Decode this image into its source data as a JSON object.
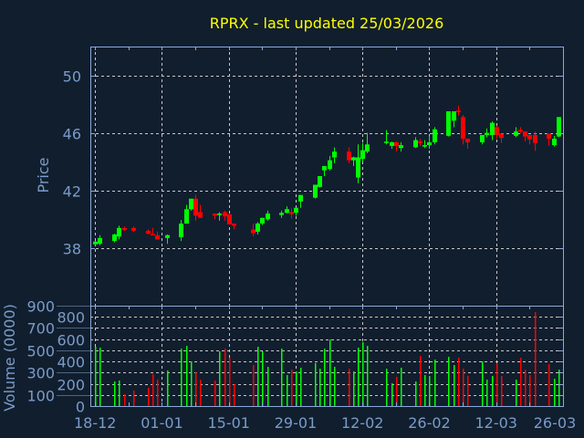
{
  "chart_data": {
    "type": "candlestick",
    "title": "RPRX - last updated 25/03/2026",
    "colors": {
      "background": "#111e2e",
      "up": "#00ff00",
      "down": "#ff0000",
      "axis": "#8aaad8",
      "text": "#7a9cc8",
      "grid": "#c8c8c8",
      "title": "#ffff00"
    },
    "x_ticks": [
      {
        "date": "2025-12-18",
        "label": "18-12"
      },
      {
        "date": "2026-01-01",
        "label": "01-01"
      },
      {
        "date": "2026-01-15",
        "label": "15-01"
      },
      {
        "date": "2026-01-29",
        "label": "29-01"
      },
      {
        "date": "2026-02-12",
        "label": "12-02"
      },
      {
        "date": "2026-02-26",
        "label": "26-02"
      },
      {
        "date": "2026-03-12",
        "label": "12-03"
      },
      {
        "date": "2026-03-26",
        "label": "26-03"
      }
    ],
    "xlim": [
      "2025-12-17",
      "2026-03-26"
    ],
    "grid": true,
    "price_panel": {
      "ylabel": "Price",
      "ylim": [
        34,
        52
      ],
      "ticks": [
        38,
        42,
        46,
        50
      ]
    },
    "volume_panel": {
      "ylabel": "Volume (0000)",
      "ylim": [
        0,
        900
      ],
      "ticks": [
        0,
        100,
        200,
        300,
        400,
        500,
        600,
        700,
        800,
        900
      ]
    },
    "columns": [
      "date",
      "open",
      "high",
      "low",
      "close",
      "volume"
    ],
    "candles": [
      [
        "2025-12-18",
        38.26,
        38.5,
        38.2,
        38.45,
        532
      ],
      [
        "2025-12-19",
        38.3,
        38.9,
        38.2,
        38.7,
        524
      ],
      [
        "2025-12-22",
        38.5,
        39.0,
        38.4,
        38.95,
        221
      ],
      [
        "2025-12-23",
        38.8,
        39.55,
        38.6,
        39.4,
        229
      ],
      [
        "2025-12-24",
        39.4,
        39.5,
        39.2,
        39.25,
        106
      ],
      [
        "2025-12-26",
        39.4,
        39.5,
        39.1,
        39.2,
        139
      ],
      [
        "2025-12-29",
        39.2,
        39.3,
        38.95,
        39.0,
        164
      ],
      [
        "2025-12-30",
        38.98,
        39.4,
        38.9,
        38.9,
        286
      ],
      [
        "2025-12-31",
        38.9,
        39.15,
        38.6,
        38.6,
        237
      ],
      [
        "2026-01-02",
        38.7,
        38.95,
        38.3,
        38.9,
        319
      ],
      [
        "2026-01-05",
        38.75,
        39.95,
        38.5,
        39.7,
        515
      ],
      [
        "2026-01-06",
        39.7,
        41.0,
        39.7,
        40.7,
        540
      ],
      [
        "2026-01-07",
        40.7,
        41.43,
        40.6,
        41.43,
        401
      ],
      [
        "2026-01-08",
        41.43,
        41.7,
        39.9,
        40.25,
        303
      ],
      [
        "2026-01-09",
        40.5,
        41.0,
        40.1,
        40.1,
        237
      ],
      [
        "2026-01-12",
        40.4,
        40.4,
        40.0,
        40.25,
        229
      ],
      [
        "2026-01-13",
        40.3,
        40.5,
        39.9,
        40.4,
        491
      ],
      [
        "2026-01-14",
        40.5,
        40.6,
        39.9,
        40.2,
        515
      ],
      [
        "2026-01-15",
        40.35,
        40.35,
        39.65,
        39.65,
        434
      ],
      [
        "2026-01-16",
        39.7,
        39.7,
        39.3,
        39.55,
        196
      ],
      [
        "2026-01-20",
        39.29,
        39.71,
        38.83,
        39.04,
        368
      ],
      [
        "2026-01-21",
        39.14,
        39.8,
        38.95,
        39.71,
        532
      ],
      [
        "2026-01-22",
        39.71,
        40.1,
        39.6,
        40.1,
        491
      ],
      [
        "2026-01-23",
        40.0,
        40.6,
        39.9,
        40.4,
        352
      ],
      [
        "2026-01-26",
        40.3,
        40.6,
        40.1,
        40.45,
        515
      ],
      [
        "2026-01-27",
        40.45,
        40.9,
        40.4,
        40.7,
        278
      ],
      [
        "2026-01-28",
        40.5,
        40.75,
        40.05,
        40.35,
        327
      ],
      [
        "2026-01-29",
        40.45,
        40.8,
        40.25,
        40.8,
        311
      ],
      [
        "2026-01-30",
        41.24,
        41.69,
        40.8,
        41.69,
        344
      ],
      [
        "2026-02-02",
        41.5,
        42.4,
        41.45,
        42.4,
        385
      ],
      [
        "2026-02-03",
        42.25,
        43.0,
        42.2,
        43.0,
        335
      ],
      [
        "2026-02-04",
        43.4,
        43.7,
        43.0,
        43.7,
        515
      ],
      [
        "2026-02-05",
        43.5,
        44.4,
        43.4,
        44.1,
        597
      ],
      [
        "2026-02-06",
        44.3,
        45.0,
        43.9,
        44.7,
        352
      ],
      [
        "2026-02-09",
        44.7,
        45.0,
        43.9,
        44.1,
        335
      ],
      [
        "2026-02-10",
        44.1,
        44.35,
        43.7,
        44.3,
        311
      ],
      [
        "2026-02-11",
        42.9,
        45.2,
        42.5,
        44.3,
        524
      ],
      [
        "2026-02-12",
        44.2,
        45.3,
        44.0,
        44.8,
        573
      ],
      [
        "2026-02-13",
        44.7,
        46.0,
        44.6,
        45.2,
        540
      ],
      [
        "2026-02-17",
        45.3,
        46.2,
        45.2,
        45.4,
        335
      ],
      [
        "2026-02-18",
        45.1,
        45.4,
        44.9,
        45.35,
        205
      ],
      [
        "2026-02-19",
        45.35,
        45.4,
        44.7,
        45.1,
        262
      ],
      [
        "2026-02-20",
        44.95,
        45.35,
        44.7,
        45.15,
        344
      ],
      [
        "2026-02-23",
        45.0,
        45.7,
        44.95,
        45.5,
        221
      ],
      [
        "2026-02-24",
        45.4,
        45.6,
        45.1,
        45.3,
        450
      ],
      [
        "2026-02-25",
        45.05,
        45.5,
        44.95,
        45.15,
        278
      ],
      [
        "2026-02-26",
        45.15,
        45.8,
        44.9,
        45.35,
        270
      ],
      [
        "2026-02-27",
        45.35,
        46.4,
        45.2,
        46.25,
        417
      ],
      [
        "2026-03-02",
        45.8,
        47.5,
        45.75,
        47.5,
        442
      ],
      [
        "2026-03-03",
        46.85,
        47.5,
        46.4,
        47.5,
        368
      ],
      [
        "2026-03-04",
        47.55,
        47.9,
        47.2,
        47.45,
        434
      ],
      [
        "2026-03-05",
        47.1,
        47.25,
        45.2,
        45.6,
        335
      ],
      [
        "2026-03-06",
        45.6,
        45.6,
        44.9,
        45.35,
        270
      ],
      [
        "2026-03-09",
        45.35,
        45.85,
        45.2,
        45.85,
        401
      ],
      [
        "2026-03-10",
        45.85,
        46.3,
        45.7,
        46.0,
        237
      ],
      [
        "2026-03-11",
        45.85,
        46.8,
        45.5,
        46.7,
        270
      ],
      [
        "2026-03-12",
        46.4,
        46.5,
        45.6,
        45.85,
        385
      ],
      [
        "2026-03-13",
        45.95,
        45.95,
        45.3,
        45.65,
        270
      ],
      [
        "2026-03-16",
        45.8,
        46.4,
        45.7,
        46.1,
        237
      ],
      [
        "2026-03-17",
        46.2,
        46.4,
        46.0,
        46.1,
        434
      ],
      [
        "2026-03-18",
        46.1,
        46.1,
        45.4,
        45.75,
        327
      ],
      [
        "2026-03-19",
        45.85,
        45.85,
        45.2,
        45.55,
        278
      ],
      [
        "2026-03-20",
        45.85,
        46.1,
        44.75,
        45.3,
        843
      ],
      [
        "2026-03-23",
        45.95,
        45.95,
        45.1,
        45.6,
        376
      ],
      [
        "2026-03-24",
        45.15,
        45.8,
        45.05,
        45.6,
        245
      ],
      [
        "2026-03-25",
        45.75,
        47.1,
        45.7,
        47.1,
        327
      ]
    ]
  }
}
